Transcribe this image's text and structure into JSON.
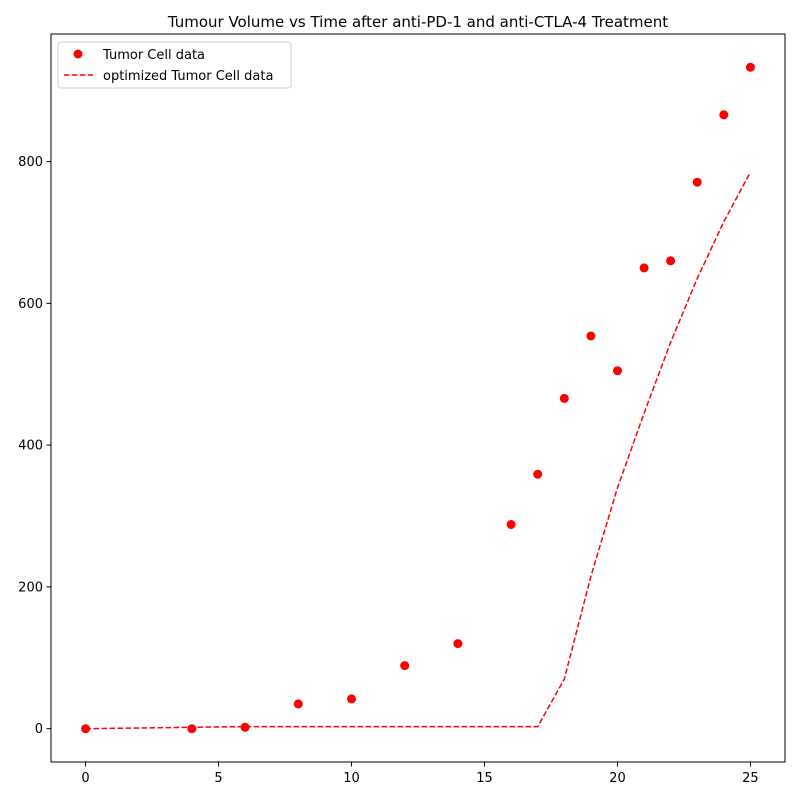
{
  "chart_data": {
    "type": "scatter",
    "title": "Tumour Volume vs Time after anti-PD-1 and anti-CTLA-4 Treatment",
    "xlabel": "",
    "ylabel": "",
    "xlim": [
      -1.3,
      26.3
    ],
    "ylim": [
      -47,
      980
    ],
    "xticks": [
      0,
      5,
      10,
      15,
      20,
      25
    ],
    "yticks": [
      0,
      200,
      400,
      600,
      800
    ],
    "grid": false,
    "legend_position": "top-left",
    "series": [
      {
        "name": "Tumor Cell data",
        "kind": "points",
        "color": "#ff0000",
        "x": [
          0,
          4,
          6,
          8,
          10,
          12,
          14,
          16,
          17,
          18,
          19,
          20,
          21,
          22,
          23,
          24,
          25
        ],
        "y": [
          0,
          0,
          2,
          35,
          42,
          89,
          120,
          288,
          359,
          466,
          554,
          505,
          650,
          660,
          771,
          866,
          933
        ]
      },
      {
        "name": "optimized Tumor Cell data",
        "kind": "dashed-line",
        "color": "#ff0000",
        "x": [
          0,
          4,
          6,
          8,
          10,
          12,
          14,
          16,
          17,
          18,
          19,
          20,
          21,
          22,
          23,
          24,
          25
        ],
        "y": [
          0,
          2,
          3,
          3,
          3,
          3,
          3,
          3,
          3,
          70,
          215,
          340,
          445,
          545,
          635,
          715,
          785
        ]
      }
    ]
  }
}
